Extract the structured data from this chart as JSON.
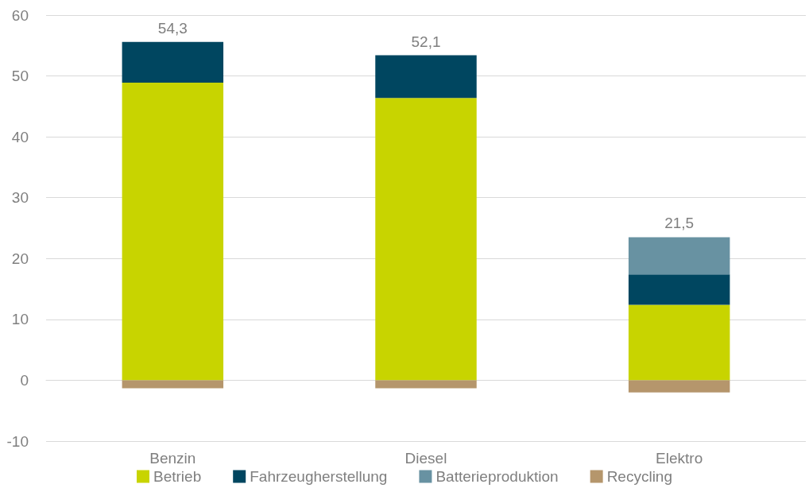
{
  "chart_data": {
    "type": "bar",
    "stacked": true,
    "categories": [
      "Benzin",
      "Diesel",
      "Elektro"
    ],
    "series": [
      {
        "name": "Betrieb",
        "color": "#c8d400",
        "values": [
          48.9,
          46.4,
          12.4
        ]
      },
      {
        "name": "Fahrzeugherstellung",
        "color": "#004660",
        "values": [
          6.7,
          7.0,
          5.0
        ]
      },
      {
        "name": "Batterieproduktion",
        "color": "#6892a2",
        "values": [
          null,
          null,
          6.1
        ]
      },
      {
        "name": "Recycling",
        "color": "#b5966c",
        "values": [
          -1.3,
          -1.3,
          -2.0
        ]
      }
    ],
    "totals": [
      "54,3",
      "52,1",
      "21,5"
    ],
    "ylim": [
      -10,
      60
    ],
    "yticks": [
      -10,
      0,
      10,
      20,
      30,
      40,
      50,
      60
    ],
    "grid": "y",
    "legend": "bottom"
  }
}
